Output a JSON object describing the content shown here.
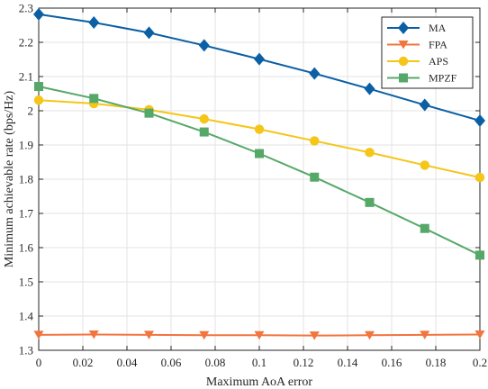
{
  "chart_data": {
    "type": "line",
    "title": "",
    "xlabel": "Maximum AoA error",
    "ylabel": "Minimum achievable rate (bps/Hz)",
    "xlim": [
      0,
      0.2
    ],
    "ylim": [
      1.3,
      2.3
    ],
    "xticks": [
      "0",
      "0.02",
      "0.04",
      "0.06",
      "0.08",
      "0.1",
      "0.12",
      "0.14",
      "0.16",
      "0.18",
      "0.2"
    ],
    "yticks": [
      "1.3",
      "1.4",
      "1.5",
      "1.6",
      "1.7",
      "1.8",
      "1.9",
      "2",
      "2.1",
      "2.2",
      "2.3"
    ],
    "grid": true,
    "legend_position": "top-right",
    "x": [
      0,
      0.025,
      0.05,
      0.075,
      0.1,
      0.125,
      0.15,
      0.175,
      0.2
    ],
    "series": [
      {
        "name": "MA",
        "color": "#0b5fa5",
        "marker": "diamond",
        "values": [
          2.282,
          2.258,
          2.228,
          2.191,
          2.151,
          2.109,
          2.064,
          2.017,
          1.971
        ]
      },
      {
        "name": "FPA",
        "color": "#f2743e",
        "marker": "triangle-down",
        "values": [
          1.345,
          1.346,
          1.345,
          1.344,
          1.344,
          1.343,
          1.344,
          1.345,
          1.346
        ]
      },
      {
        "name": "APS",
        "color": "#f5c518",
        "marker": "circle",
        "values": [
          2.031,
          2.021,
          2.003,
          1.976,
          1.946,
          1.912,
          1.878,
          1.841,
          1.805
        ]
      },
      {
        "name": "MPZF",
        "color": "#55a868",
        "marker": "square",
        "values": [
          2.071,
          2.036,
          1.993,
          1.938,
          1.875,
          1.806,
          1.732,
          1.656,
          1.578
        ]
      }
    ]
  }
}
